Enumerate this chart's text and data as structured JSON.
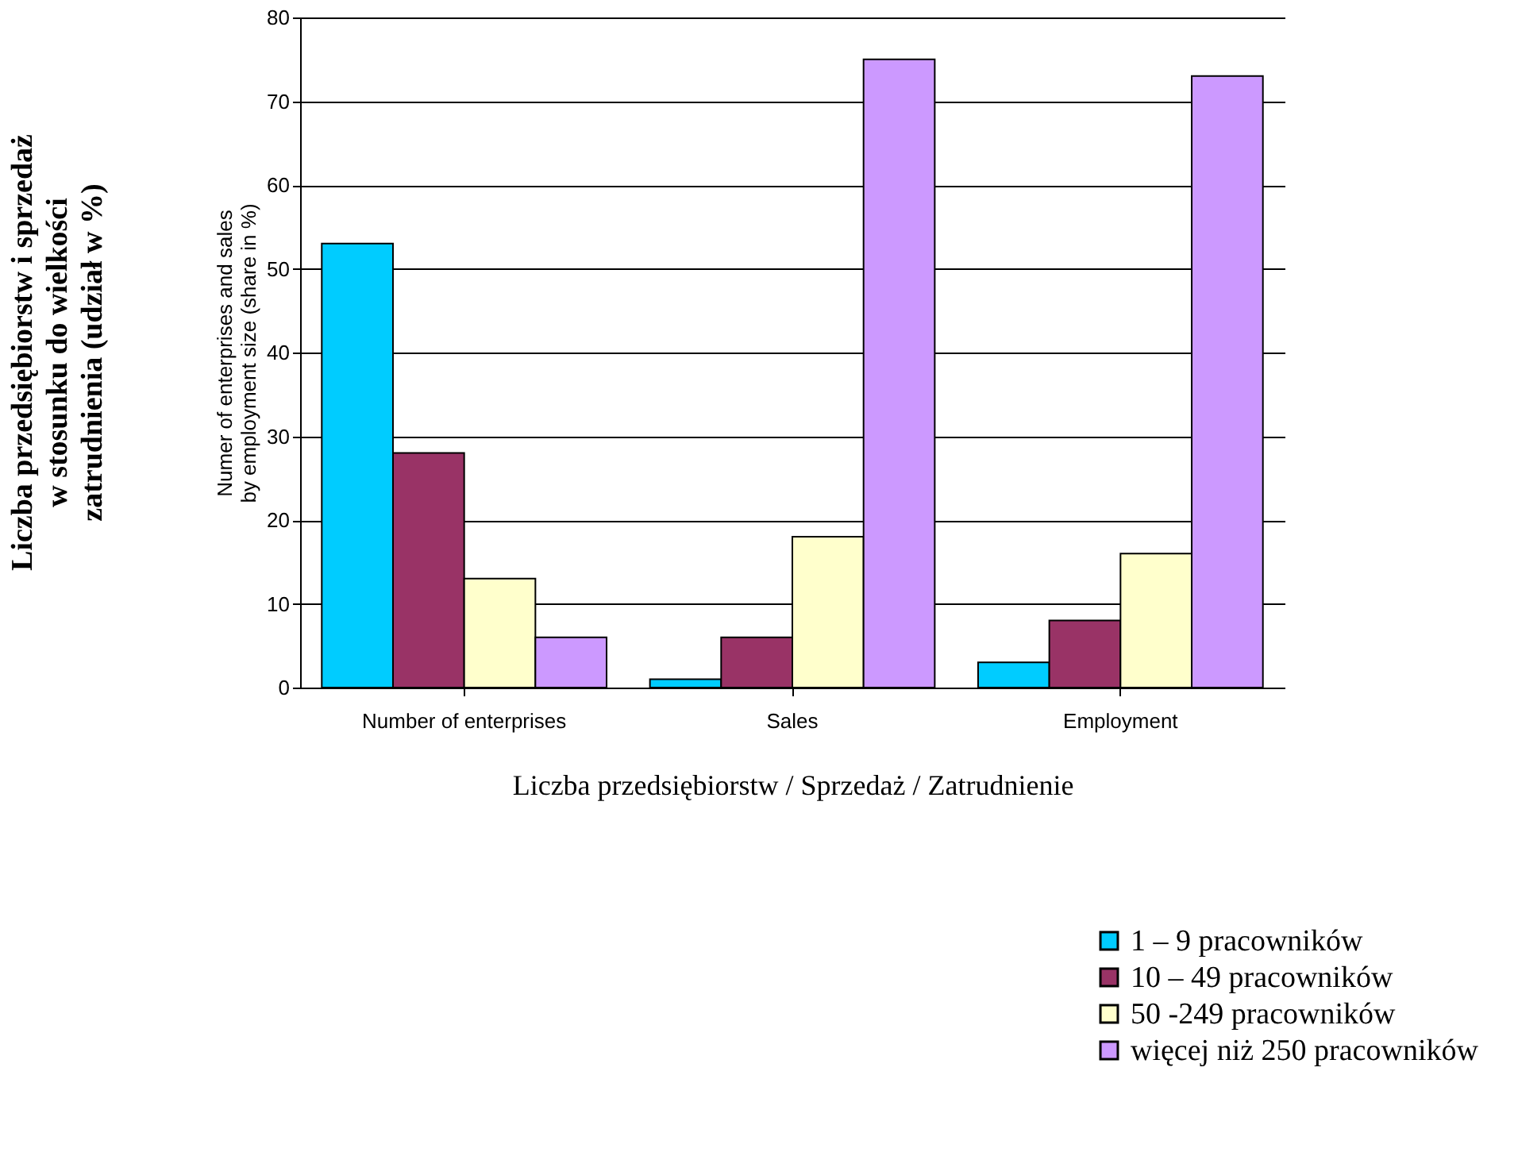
{
  "chart_data": {
    "type": "bar",
    "categories": [
      "Number of enterprises",
      "Sales",
      "Employment"
    ],
    "series": [
      {
        "name": "1 – 9 pracowników",
        "color": "#00ccff",
        "values": [
          53,
          1,
          3
        ]
      },
      {
        "name": "10 – 49 pracowników",
        "color": "#993366",
        "values": [
          28,
          6,
          8
        ]
      },
      {
        "name": "50 -249 pracowników",
        "color": "#ffffcc",
        "values": [
          13,
          18,
          16
        ]
      },
      {
        "name": "więcej niż 250 pracowników",
        "color": "#cc99ff",
        "values": [
          6,
          75,
          73
        ]
      }
    ],
    "ylabel": "Numer of enterprises and sales\nby employment size (share in %)",
    "xlabel": "Liczba przedsiębiorstw / Sprzedaż / Zatrudnienie",
    "annotations": [
      "Liczba przedsiębiorstw i sprzedaż\nw stosunku do wielkości\nzatrudnienia (udział w %)"
    ],
    "ylim": [
      0,
      80
    ],
    "yticks": [
      0,
      10,
      20,
      30,
      40,
      50,
      60,
      70,
      80
    ],
    "grid": "y",
    "legend": "bottom right"
  }
}
